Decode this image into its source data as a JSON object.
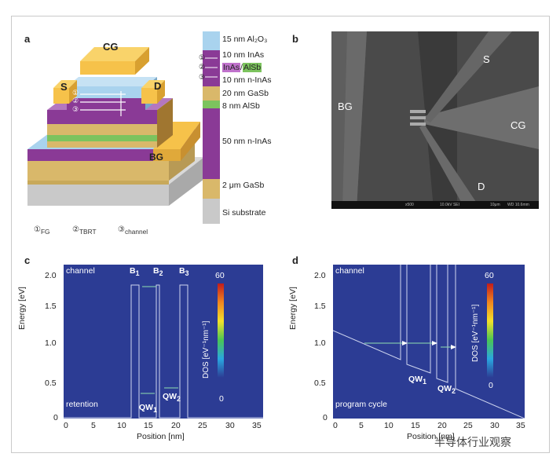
{
  "panels": {
    "a": "a",
    "b": "b",
    "c": "c",
    "d": "d"
  },
  "device": {
    "cg": "CG",
    "s": "S",
    "d": "D",
    "bg": "BG",
    "markers": [
      "①",
      "②",
      "③"
    ]
  },
  "layers": [
    {
      "label": "15 nm Al₂O₃",
      "color": "#a9d3ee"
    },
    {
      "label": "10 nm InAs",
      "color": "#8a3a96"
    },
    {
      "label": "InAs/AlSb",
      "color": "#8a3a96"
    },
    {
      "label": "10 nm n-InAs",
      "color": "#8a3a96"
    },
    {
      "label": "20 nm GaSb",
      "color": "#d9b86a"
    },
    {
      "label": "8 nm AlSb",
      "color": "#7cc35e"
    },
    {
      "label": "50 nm n-InAs",
      "color": "#8a3a96"
    },
    {
      "label": "2 μm GaSb",
      "color": "#d9b86a"
    },
    {
      "label": "Si substrate",
      "color": "#c9c9c9"
    }
  ],
  "inas_alsb": {
    "inas": "InAs",
    "slash": "/",
    "alsb": "AlSb"
  },
  "footnote": {
    "fg_num": "①",
    "fg": "FG",
    "tbrt_num": "②",
    "tbrt": "TBRT",
    "ch_num": "③",
    "channel": "channel"
  },
  "sem": {
    "bg": "BG",
    "s": "S",
    "cg": "CG",
    "d": "D",
    "bar_left": "x500",
    "bar_mid": "10.0kV SEI",
    "bar_right": "10μm",
    "bar_right2": "WD 10.6mm"
  },
  "plot_c": {
    "ylabel": "Energy [eV]",
    "xlabel": "Position [nm]",
    "xticks": [
      "0",
      "5",
      "10",
      "15",
      "20",
      "25",
      "30",
      "35"
    ],
    "yticks": [
      "0",
      "0.5",
      "1.0",
      "1.5",
      "2.0"
    ],
    "channel": "channel",
    "mode": "retention",
    "barriers": [
      "B",
      "B",
      "B"
    ],
    "barrier_sub": [
      "1",
      "2",
      "3"
    ],
    "wells": [
      "QW",
      "QW"
    ],
    "well_sub": [
      "1",
      "2"
    ],
    "cbar_label": "DOS [eV⁻¹nm⁻¹]",
    "cbar_max": "60",
    "cbar_min": "0"
  },
  "plot_d": {
    "ylabel": "Energy [eV]",
    "xlabel": "Position [nm]",
    "xticks": [
      "0",
      "5",
      "10",
      "15",
      "20",
      "25",
      "30",
      "35"
    ],
    "yticks": [
      "0",
      "0.5",
      "1.0",
      "1.5",
      "2.0"
    ],
    "channel": "channel",
    "mode": "program cycle",
    "wells": [
      "QW",
      "QW"
    ],
    "well_sub": [
      "1",
      "2"
    ],
    "cbar_label": "DOS [eV⁻¹nm⁻¹]",
    "cbar_max": "60",
    "cbar_min": "0"
  },
  "watermark": "半导体行业观察"
}
